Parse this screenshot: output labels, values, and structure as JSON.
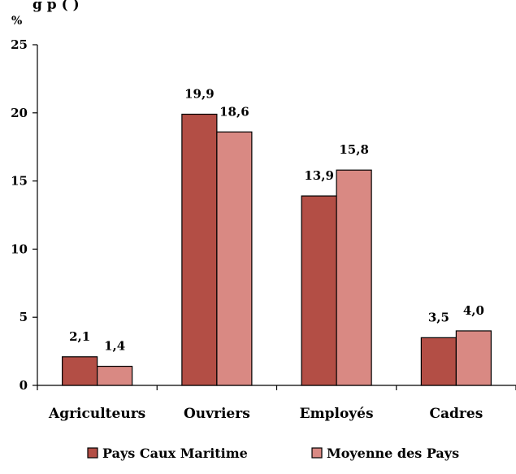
{
  "title_fragment": "g                    p                                  (    )",
  "chart_data": {
    "type": "bar",
    "unit_label": "%",
    "categories": [
      "Agriculteurs",
      "Ouvriers",
      "Employés",
      "Cadres"
    ],
    "series": [
      {
        "name": "Pays Caux Maritime",
        "color": "#b34e45",
        "values": [
          2.1,
          19.9,
          13.9,
          3.5
        ],
        "labels": [
          "2,1",
          "19,9",
          "13,9",
          "3,5"
        ]
      },
      {
        "name": "Moyenne des Pays",
        "color": "#d98983",
        "values": [
          1.4,
          18.6,
          15.8,
          4.0
        ],
        "labels": [
          "1,4",
          "18,6",
          "15,8",
          "4,0"
        ]
      }
    ],
    "ylim": [
      0,
      25
    ],
    "yticks": [
      "0",
      "5",
      "10",
      "15",
      "20",
      "25"
    ],
    "grid": false,
    "legend": "bottom"
  }
}
